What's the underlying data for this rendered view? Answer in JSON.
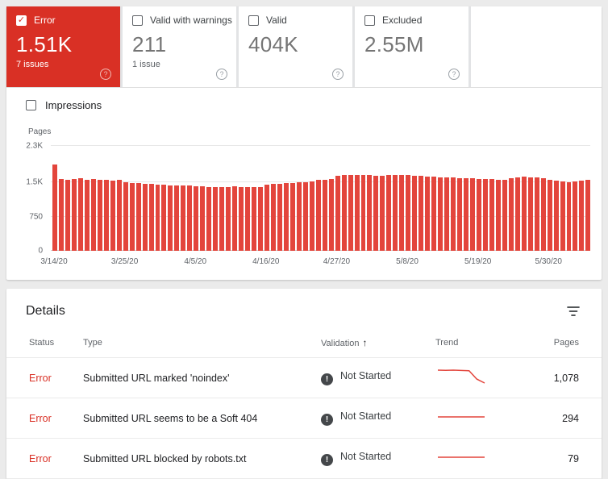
{
  "colors": {
    "error_red": "#d93025",
    "bar_red": "#e3453c"
  },
  "icons": {
    "help": "?",
    "check": "✓",
    "sort_asc": "↑",
    "not_started": "!"
  },
  "cards": [
    {
      "label": "Error",
      "value": "1.51K",
      "sub": "7 issues",
      "selected": true
    },
    {
      "label": "Valid with warnings",
      "value": "211",
      "sub": "1 issue",
      "selected": false
    },
    {
      "label": "Valid",
      "value": "404K",
      "sub": "",
      "selected": false
    },
    {
      "label": "Excluded",
      "value": "2.55M",
      "sub": "",
      "selected": false
    }
  ],
  "impressions_label": "Impressions",
  "chart_data": {
    "type": "bar",
    "ylabel": "Pages",
    "yticks": [
      "2.3K",
      "1.5K",
      "750",
      "0"
    ],
    "ytick_values": [
      2300,
      1500,
      750,
      0
    ],
    "ylim": [
      0,
      2300
    ],
    "x_labels": [
      "3/14/20",
      "3/25/20",
      "4/5/20",
      "4/16/20",
      "4/27/20",
      "5/8/20",
      "5/19/20",
      "5/30/20"
    ],
    "label_every": 11,
    "grid": true,
    "values": [
      1900,
      1580,
      1560,
      1570,
      1590,
      1560,
      1570,
      1550,
      1560,
      1540,
      1555,
      1500,
      1490,
      1480,
      1470,
      1460,
      1450,
      1445,
      1440,
      1435,
      1430,
      1430,
      1420,
      1410,
      1400,
      1395,
      1400,
      1405,
      1410,
      1400,
      1390,
      1395,
      1400,
      1450,
      1460,
      1470,
      1480,
      1490,
      1500,
      1510,
      1530,
      1550,
      1560,
      1570,
      1650,
      1660,
      1655,
      1665,
      1670,
      1660,
      1650,
      1640,
      1655,
      1665,
      1670,
      1660,
      1650,
      1640,
      1630,
      1620,
      1615,
      1610,
      1605,
      1600,
      1595,
      1590,
      1580,
      1575,
      1570,
      1565,
      1560,
      1600,
      1610,
      1620,
      1615,
      1605,
      1595,
      1560,
      1540,
      1520,
      1510,
      1530,
      1545,
      1550
    ]
  },
  "details": {
    "title": "Details",
    "columns": [
      "Status",
      "Type",
      "Validation",
      "Trend",
      "Pages"
    ],
    "rows": [
      {
        "status": "Error",
        "type": "Submitted URL marked 'noindex'",
        "validation": "Not Started",
        "trend": [
          1150,
          1149,
          1150,
          1148,
          1147,
          1100,
          1078
        ],
        "pages": "1,078"
      },
      {
        "status": "Error",
        "type": "Submitted URL seems to be a Soft 404",
        "validation": "Not Started",
        "trend": [
          294,
          294,
          294,
          294,
          294,
          294,
          294
        ],
        "pages": "294"
      },
      {
        "status": "Error",
        "type": "Submitted URL blocked by robots.txt",
        "validation": "Not Started",
        "trend": [
          79,
          79,
          79,
          79,
          79,
          79,
          79
        ],
        "pages": "79"
      }
    ]
  }
}
